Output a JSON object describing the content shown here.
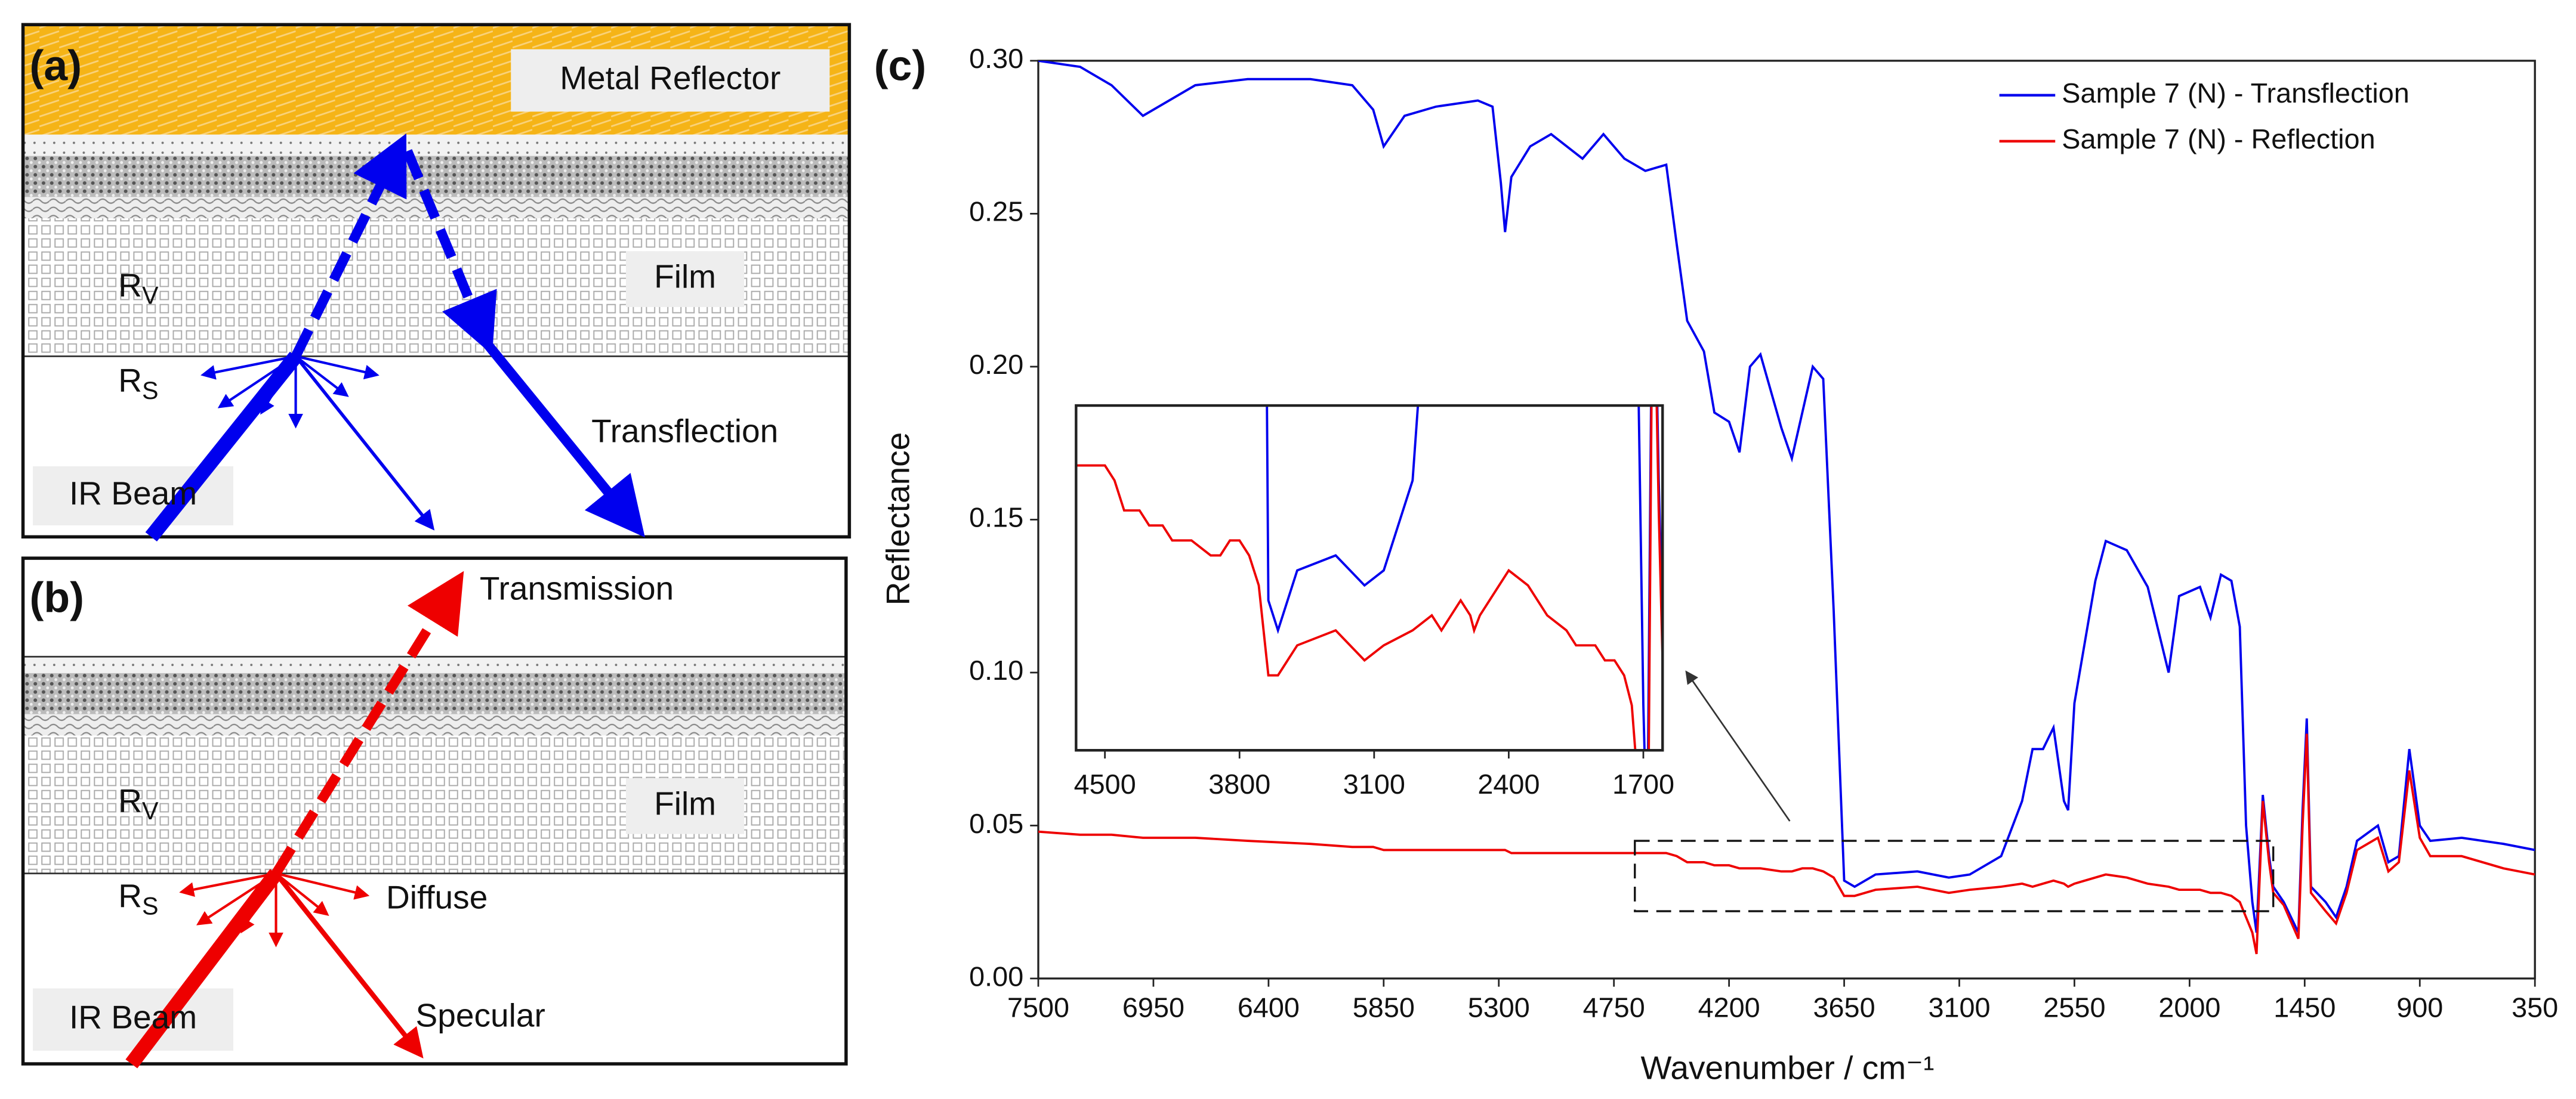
{
  "panels": {
    "a": {
      "label": "(a)",
      "reflector": "Metal Reflector",
      "film": "Film",
      "rv": {
        "main": "R",
        "sub": "V"
      },
      "rs": {
        "main": "R",
        "sub": "S"
      },
      "beam": "IR Beam",
      "transflection": "Transflection"
    },
    "b": {
      "label": "(b)",
      "transmission": "Transmission",
      "film": "Film",
      "rv": {
        "main": "R",
        "sub": "V"
      },
      "rs": {
        "main": "R",
        "sub": "S"
      },
      "diffuse": "Diffuse",
      "beam": "IR Beam",
      "specular": "Specular"
    }
  },
  "chart_data": {
    "type": "line",
    "panel_label": "(c)",
    "xlabel": "Wavenumber / cm⁻¹",
    "ylabel": "Reflectance",
    "xlim": [
      7500,
      350
    ],
    "ylim": [
      0,
      0.3
    ],
    "xticks": [
      7500,
      6950,
      6400,
      5850,
      5300,
      4750,
      4200,
      3650,
      3100,
      2550,
      2000,
      1450,
      900,
      350
    ],
    "yticks": [
      {
        "value": 0,
        "label": "0.00"
      },
      {
        "value": 0.05,
        "label": "0.05"
      },
      {
        "value": 0.1,
        "label": "0.10"
      },
      {
        "value": 0.15,
        "label": "0.15"
      },
      {
        "value": 0.2,
        "label": "0.20"
      },
      {
        "value": 0.25,
        "label": "0.25"
      },
      {
        "value": 0.3,
        "label": "0.30"
      }
    ],
    "legend": "upper right",
    "x": [
      7500,
      7300,
      7150,
      7000,
      6900,
      6750,
      6500,
      6200,
      6000,
      5900,
      5850,
      5750,
      5600,
      5400,
      5330,
      5290,
      5270,
      5240,
      5150,
      5050,
      4900,
      4800,
      4700,
      4600,
      4500,
      4450,
      4400,
      4320,
      4270,
      4200,
      4150,
      4100,
      4050,
      3950,
      3900,
      3850,
      3800,
      3750,
      3700,
      3650,
      3600,
      3500,
      3300,
      3150,
      3050,
      2900,
      2800,
      2750,
      2700,
      2650,
      2600,
      2580,
      2550,
      2500,
      2450,
      2400,
      2300,
      2200,
      2100,
      2050,
      1950,
      1900,
      1850,
      1800,
      1760,
      1730,
      1700,
      1680,
      1650,
      1620,
      1600,
      1550,
      1480,
      1460,
      1440,
      1420,
      1350,
      1300,
      1250,
      1200,
      1100,
      1050,
      1000,
      950,
      900,
      850,
      700,
      500,
      350
    ],
    "series": [
      {
        "name": "Sample 7 (N) - Transflection",
        "color": "#0000ee",
        "values": [
          0.3,
          0.298,
          0.292,
          0.282,
          0.286,
          0.292,
          0.294,
          0.294,
          0.292,
          0.284,
          0.272,
          0.282,
          0.285,
          0.287,
          0.285,
          0.26,
          0.244,
          0.262,
          0.272,
          0.276,
          0.268,
          0.276,
          0.268,
          0.264,
          0.266,
          0.24,
          0.215,
          0.205,
          0.185,
          0.182,
          0.172,
          0.2,
          0.204,
          0.18,
          0.17,
          0.185,
          0.2,
          0.196,
          0.12,
          0.032,
          0.03,
          0.034,
          0.035,
          0.033,
          0.034,
          0.04,
          0.058,
          0.075,
          0.075,
          0.082,
          0.058,
          0.055,
          0.09,
          0.11,
          0.13,
          0.143,
          0.14,
          0.128,
          0.1,
          0.125,
          0.128,
          0.118,
          0.132,
          0.13,
          0.115,
          0.05,
          0.025,
          0.015,
          0.06,
          0.04,
          0.03,
          0.025,
          0.015,
          0.055,
          0.085,
          0.03,
          0.025,
          0.02,
          0.03,
          0.045,
          0.05,
          0.038,
          0.04,
          0.075,
          0.05,
          0.045,
          0.046,
          0.044,
          0.042
        ]
      },
      {
        "name": "Sample 7 (N) - Reflection",
        "color": "#ee0000",
        "values": [
          0.048,
          0.047,
          0.047,
          0.046,
          0.046,
          0.046,
          0.045,
          0.044,
          0.043,
          0.043,
          0.042,
          0.042,
          0.042,
          0.042,
          0.042,
          0.042,
          0.042,
          0.041,
          0.041,
          0.041,
          0.041,
          0.041,
          0.041,
          0.041,
          0.041,
          0.04,
          0.038,
          0.038,
          0.037,
          0.037,
          0.036,
          0.036,
          0.036,
          0.035,
          0.035,
          0.036,
          0.036,
          0.035,
          0.033,
          0.027,
          0.027,
          0.029,
          0.03,
          0.028,
          0.029,
          0.03,
          0.031,
          0.03,
          0.031,
          0.032,
          0.031,
          0.03,
          0.031,
          0.032,
          0.033,
          0.034,
          0.033,
          0.031,
          0.03,
          0.029,
          0.029,
          0.028,
          0.028,
          0.027,
          0.025,
          0.02,
          0.015,
          0.008,
          0.058,
          0.038,
          0.028,
          0.024,
          0.013,
          0.05,
          0.08,
          0.028,
          0.022,
          0.018,
          0.028,
          0.042,
          0.046,
          0.035,
          0.038,
          0.068,
          0.046,
          0.04,
          0.04,
          0.036,
          0.034
        ]
      }
    ],
    "inset": {
      "xlim": [
        4650,
        1600
      ],
      "ylim": [
        0.022,
        0.045
      ],
      "xticks": [
        4500,
        3800,
        3100,
        2400,
        1700
      ]
    }
  }
}
